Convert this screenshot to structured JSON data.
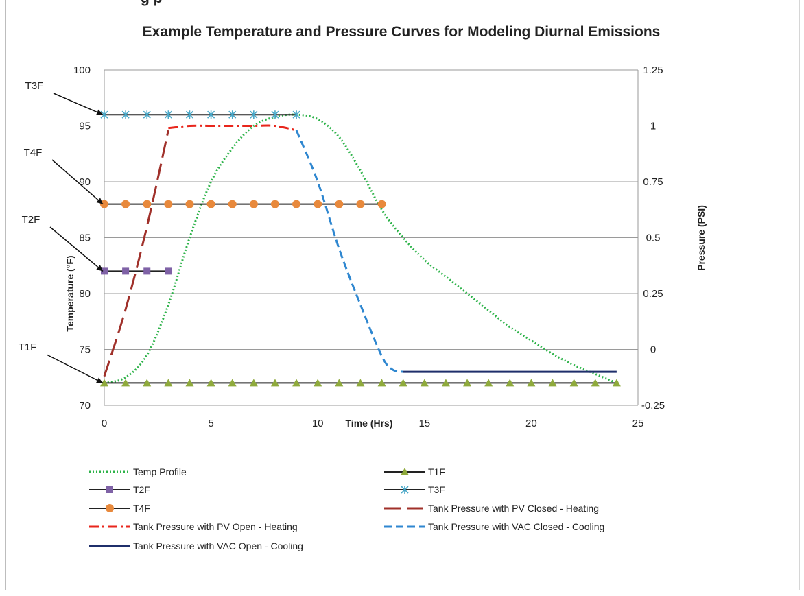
{
  "page_header_fragment": "g        p",
  "chart_data": {
    "type": "line",
    "title": "Example Temperature and Pressure Curves for Modeling Diurnal Emissions",
    "xlabel": "Time (Hrs)",
    "ylabel": "Temperature (°F)",
    "y2label": "Pressure (PSI)",
    "xlim": [
      0,
      25
    ],
    "ylim": [
      70,
      100
    ],
    "y2lim": [
      -0.25,
      1.25
    ],
    "x_ticks": [
      "0",
      "5",
      "10",
      "15",
      "20",
      "25"
    ],
    "y_ticks": [
      "70",
      "75",
      "80",
      "85",
      "90",
      "95",
      "100"
    ],
    "y2_ticks": [
      "-0.25",
      "0",
      "0.25",
      "0.5",
      "0.75",
      "1",
      "1.25"
    ],
    "grid": true,
    "legend_position": "bottom",
    "callouts": [
      {
        "label": "T3F",
        "target_y": 96
      },
      {
        "label": "T4F",
        "target_y": 88
      },
      {
        "label": "T2F",
        "target_y": 82
      },
      {
        "label": "T1F",
        "target_y": 72
      }
    ],
    "series": [
      {
        "name": "Temp Profile",
        "axis": "left",
        "color": "#2eb34a",
        "style": "dotted",
        "x": [
          0,
          1,
          2,
          3,
          4,
          5,
          6,
          7,
          8,
          9,
          10,
          11,
          12,
          13,
          14,
          15,
          16,
          17,
          18,
          19,
          20,
          21,
          22,
          23,
          24
        ],
        "y": [
          72,
          72.5,
          74.5,
          79,
          85,
          90,
          93,
          95,
          95.8,
          96,
          95.6,
          94,
          91,
          87.5,
          85,
          83,
          81.5,
          80,
          78.5,
          77,
          75.8,
          74.6,
          73.6,
          72.8,
          72
        ]
      },
      {
        "name": "T1F",
        "axis": "left",
        "color": "#222222",
        "marker": "triangle",
        "marker_color": "#8faa3c",
        "x": [
          0,
          1,
          2,
          3,
          4,
          5,
          6,
          7,
          8,
          9,
          10,
          11,
          12,
          13,
          14,
          15,
          16,
          17,
          18,
          19,
          20,
          21,
          22,
          23,
          24
        ],
        "y": [
          72,
          72,
          72,
          72,
          72,
          72,
          72,
          72,
          72,
          72,
          72,
          72,
          72,
          72,
          72,
          72,
          72,
          72,
          72,
          72,
          72,
          72,
          72,
          72,
          72
        ]
      },
      {
        "name": "T2F",
        "axis": "left",
        "color": "#222222",
        "marker": "square",
        "marker_color": "#7f62a6",
        "x": [
          0,
          1,
          2,
          3
        ],
        "y": [
          82,
          82,
          82,
          82
        ]
      },
      {
        "name": "T3F",
        "axis": "left",
        "color": "#222222",
        "marker": "star",
        "marker_color": "#4aa8c8",
        "x": [
          0,
          1,
          2,
          3,
          4,
          5,
          6,
          7,
          8,
          9
        ],
        "y": [
          96,
          96,
          96,
          96,
          96,
          96,
          96,
          96,
          96,
          96
        ]
      },
      {
        "name": "T4F",
        "axis": "left",
        "color": "#222222",
        "marker": "circle",
        "marker_color": "#e8893c",
        "x": [
          0,
          1,
          2,
          3,
          4,
          5,
          6,
          7,
          8,
          9,
          10,
          11,
          12,
          13
        ],
        "y": [
          88,
          88,
          88,
          88,
          88,
          88,
          88,
          88,
          88,
          88,
          88,
          88,
          88,
          88
        ]
      },
      {
        "name": "Tank Pressure with PV Closed - Heating",
        "axis": "right",
        "color": "#a0302a",
        "style": "longdash",
        "x": [
          0,
          1,
          2,
          3
        ],
        "y": [
          -0.12,
          0.18,
          0.55,
          0.98
        ]
      },
      {
        "name": "Tank Pressure with PV Open - Heating",
        "axis": "right",
        "color": "#e8261c",
        "style": "dashdot",
        "x": [
          3,
          4,
          5,
          6,
          7,
          8,
          9
        ],
        "y": [
          0.99,
          1,
          1,
          1,
          1,
          1,
          0.98
        ]
      },
      {
        "name": "Tank Pressure with VAC Closed - Cooling",
        "axis": "right",
        "color": "#2f87d0",
        "style": "dashed",
        "x": [
          9,
          10,
          11,
          12,
          13,
          13.5,
          14
        ],
        "y": [
          0.98,
          0.75,
          0.45,
          0.2,
          -0.03,
          -0.09,
          -0.1
        ]
      },
      {
        "name": "Tank Pressure with VAC Open - Cooling",
        "axis": "right",
        "color": "#1f2f6b",
        "style": "solid",
        "x": [
          14,
          24
        ],
        "y": [
          -0.1,
          -0.1
        ]
      }
    ]
  }
}
